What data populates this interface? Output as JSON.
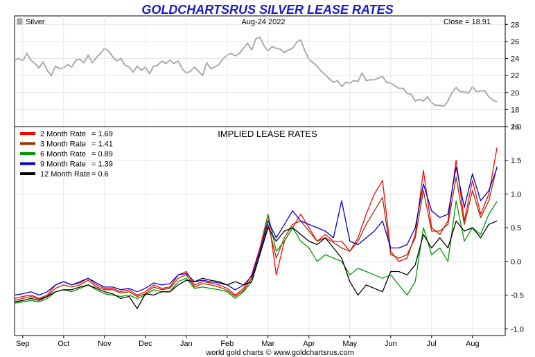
{
  "title": "GOLDCHARTSRUS SILVER LEASE RATES",
  "footer": "world gold charts © www.goldchartsrus.com",
  "colors": {
    "title": "#1a1acc",
    "silver": "#aaaaaa",
    "grid": "#e6e6e6",
    "frame": "#000000"
  },
  "chart_data": [
    {
      "type": "line",
      "panel": "top",
      "legend_label": "Silver",
      "date_label": "Aug-24  2022",
      "close_label": "Close = 18.91",
      "ylim": [
        16,
        29
      ],
      "y_ticks": [
        16,
        18,
        20,
        22,
        24,
        26,
        28
      ],
      "x_range": [
        0,
        12
      ],
      "grid": true,
      "series": [
        {
          "name": "Silver",
          "color": "#aaaaaa",
          "x": [
            0,
            0.1,
            0.2,
            0.3,
            0.4,
            0.5,
            0.6,
            0.7,
            0.8,
            0.9,
            1.0,
            1.1,
            1.2,
            1.3,
            1.4,
            1.5,
            1.6,
            1.7,
            1.8,
            1.9,
            2.0,
            2.1,
            2.2,
            2.3,
            2.4,
            2.5,
            2.6,
            2.7,
            2.8,
            2.9,
            3.0,
            3.1,
            3.2,
            3.3,
            3.4,
            3.5,
            3.6,
            3.7,
            3.8,
            3.9,
            4.0,
            4.1,
            4.2,
            4.3,
            4.4,
            4.5,
            4.6,
            4.7,
            4.8,
            4.9,
            5.0,
            5.1,
            5.2,
            5.3,
            5.4,
            5.5,
            5.6,
            5.7,
            5.8,
            5.9,
            6.0,
            6.1,
            6.2,
            6.3,
            6.4,
            6.5,
            6.6,
            6.7,
            6.8,
            6.9,
            7.0,
            7.1,
            7.2,
            7.3,
            7.4,
            7.5,
            7.6,
            7.7,
            7.8,
            7.9,
            8.0,
            8.1,
            8.2,
            8.3,
            8.4,
            8.5,
            8.6,
            8.7,
            8.8,
            8.9,
            9.0,
            9.1,
            9.2,
            9.3,
            9.4,
            9.5,
            9.6,
            9.7,
            9.8,
            9.9,
            10.0,
            10.1,
            10.2,
            10.3,
            10.4,
            10.5,
            10.6,
            10.7,
            10.8,
            10.9,
            11.0,
            11.1,
            11.2,
            11.3,
            11.4,
            11.5,
            11.6,
            11.7,
            11.8
          ],
          "values": [
            23.8,
            24.0,
            23.7,
            24.6,
            23.8,
            23.4,
            22.9,
            23.6,
            22.6,
            22.0,
            23.1,
            22.8,
            22.9,
            23.3,
            23.0,
            23.8,
            23.9,
            23.5,
            24.4,
            23.5,
            24.1,
            24.6,
            25.2,
            24.9,
            24.2,
            23.7,
            24.0,
            23.2,
            23.0,
            22.4,
            23.1,
            22.6,
            23.0,
            22.2,
            23.1,
            23.2,
            23.7,
            23.4,
            23.8,
            23.4,
            23.7,
            22.8,
            22.3,
            22.5,
            23.0,
            22.5,
            22.0,
            23.5,
            22.8,
            23.0,
            23.3,
            24.0,
            24.4,
            24.6,
            24.3,
            24.6,
            25.2,
            25.8,
            25.0,
            26.3,
            26.5,
            25.5,
            24.9,
            25.4,
            25.2,
            25.1,
            24.7,
            25.0,
            25.2,
            25.9,
            26.2,
            24.9,
            23.9,
            23.5,
            23.1,
            22.5,
            22.1,
            21.6,
            21.2,
            21.4,
            20.7,
            21.2,
            21.1,
            21.4,
            21.3,
            22.3,
            21.4,
            21.5,
            21.5,
            21.7,
            21.9,
            21.2,
            21.1,
            20.8,
            20.5,
            20.5,
            19.9,
            19.8,
            19.0,
            19.2,
            19.0,
            19.5,
            18.8,
            18.5,
            18.5,
            18.4,
            19.0,
            20.0,
            20.6,
            20.1,
            20.1,
            19.9,
            20.7,
            20.1,
            20.2,
            20.2,
            19.5,
            19.1,
            18.9
          ],
          "line_width": 2
        }
      ]
    },
    {
      "type": "line",
      "panel": "bottom",
      "title": "IMPLIED LEASE RATES",
      "ylim": [
        -1.1,
        2.0
      ],
      "y_ticks": [
        -1.0,
        -0.5,
        0.0,
        0.5,
        1.0,
        1.5,
        2.0
      ],
      "y_tick_labels": [
        "-1.0",
        "-0.5",
        "0.0",
        "0.5",
        "1.0",
        "1.5",
        "2.0"
      ],
      "x_range": [
        0,
        12
      ],
      "x_ticks": [
        0.2,
        1.2,
        2.2,
        3.2,
        4.2,
        5.2,
        6.2,
        7.2,
        8.2,
        9.2,
        10.2,
        11.2
      ],
      "categories": [
        "Sep",
        "Oct",
        "Nov",
        "Dec",
        "Jan",
        "Feb",
        "Mar",
        "Apr",
        "May",
        "Jun",
        "Jul",
        "Aug"
      ],
      "grid": true,
      "legend_position": "top-left",
      "series": [
        {
          "name": "2 Month Rate",
          "legend_value": "1.69",
          "color": "#ff0000",
          "x": [
            0,
            0.2,
            0.4,
            0.6,
            0.8,
            1.0,
            1.2,
            1.4,
            1.6,
            1.8,
            2.0,
            2.2,
            2.4,
            2.6,
            2.8,
            3.0,
            3.2,
            3.4,
            3.6,
            3.8,
            4.0,
            4.2,
            4.4,
            4.6,
            4.8,
            5.0,
            5.2,
            5.4,
            5.6,
            5.8,
            6.0,
            6.2,
            6.4,
            6.6,
            6.8,
            7.0,
            7.2,
            7.4,
            7.6,
            7.8,
            8.0,
            8.2,
            8.4,
            8.6,
            8.8,
            9.0,
            9.2,
            9.4,
            9.6,
            9.8,
            10.0,
            10.2,
            10.4,
            10.6,
            10.8,
            11.0,
            11.2,
            11.4,
            11.6,
            11.8
          ],
          "values": [
            -0.55,
            -0.52,
            -0.5,
            -0.55,
            -0.5,
            -0.35,
            -0.3,
            -0.35,
            -0.32,
            -0.25,
            -0.35,
            -0.4,
            -0.4,
            -0.45,
            -0.42,
            -0.5,
            -0.45,
            -0.35,
            -0.4,
            -0.38,
            -0.2,
            -0.15,
            -0.35,
            -0.3,
            -0.32,
            -0.35,
            -0.4,
            -0.5,
            -0.4,
            -0.2,
            0.2,
            0.7,
            -0.2,
            0.3,
            0.5,
            0.7,
            0.5,
            0.3,
            0.4,
            0.3,
            0.3,
            0.15,
            0.35,
            0.7,
            1.0,
            1.2,
            0.15,
            0.0,
            0.05,
            0.4,
            1.35,
            0.5,
            0.4,
            0.6,
            1.5,
            0.6,
            1.2,
            0.7,
            1.0,
            1.69
          ]
        },
        {
          "name": "3 Month Rate",
          "legend_value": "1.41",
          "color": "#993300",
          "x": [
            0,
            0.2,
            0.4,
            0.6,
            0.8,
            1.0,
            1.2,
            1.4,
            1.6,
            1.8,
            2.0,
            2.2,
            2.4,
            2.6,
            2.8,
            3.0,
            3.2,
            3.4,
            3.6,
            3.8,
            4.0,
            4.2,
            4.4,
            4.6,
            4.8,
            5.0,
            5.2,
            5.4,
            5.6,
            5.8,
            6.0,
            6.2,
            6.4,
            6.6,
            6.8,
            7.0,
            7.2,
            7.4,
            7.6,
            7.8,
            8.0,
            8.2,
            8.4,
            8.6,
            8.8,
            9.0,
            9.2,
            9.4,
            9.6,
            9.8,
            10.0,
            10.2,
            10.4,
            10.6,
            10.8,
            11.0,
            11.2,
            11.4,
            11.6,
            11.8
          ],
          "values": [
            -0.58,
            -0.55,
            -0.52,
            -0.56,
            -0.52,
            -0.4,
            -0.35,
            -0.38,
            -0.35,
            -0.28,
            -0.38,
            -0.42,
            -0.42,
            -0.47,
            -0.45,
            -0.52,
            -0.48,
            -0.38,
            -0.42,
            -0.4,
            -0.25,
            -0.2,
            -0.38,
            -0.33,
            -0.35,
            -0.38,
            -0.43,
            -0.52,
            -0.43,
            -0.25,
            0.1,
            0.55,
            0.05,
            0.35,
            0.55,
            0.6,
            0.45,
            0.3,
            0.35,
            0.28,
            0.2,
            0.15,
            0.3,
            0.55,
            0.75,
            0.95,
            0.1,
            0.05,
            0.1,
            0.35,
            1.05,
            0.45,
            0.45,
            0.55,
            1.25,
            0.55,
            1.05,
            0.65,
            0.9,
            1.41
          ]
        },
        {
          "name": "6 Month Rate",
          "legend_value": "0.89",
          "color": "#009900",
          "x": [
            0,
            0.2,
            0.4,
            0.6,
            0.8,
            1.0,
            1.2,
            1.4,
            1.6,
            1.8,
            2.0,
            2.2,
            2.4,
            2.6,
            2.8,
            3.0,
            3.2,
            3.4,
            3.6,
            3.8,
            4.0,
            4.2,
            4.4,
            4.6,
            4.8,
            5.0,
            5.2,
            5.4,
            5.6,
            5.8,
            6.0,
            6.2,
            6.4,
            6.6,
            6.8,
            7.0,
            7.2,
            7.4,
            7.6,
            7.8,
            8.0,
            8.2,
            8.4,
            8.6,
            8.8,
            9.0,
            9.2,
            9.4,
            9.6,
            9.8,
            10.0,
            10.2,
            10.4,
            10.6,
            10.8,
            11.0,
            11.2,
            11.4,
            11.6,
            11.8
          ],
          "values": [
            -0.62,
            -0.6,
            -0.58,
            -0.6,
            -0.55,
            -0.45,
            -0.42,
            -0.45,
            -0.4,
            -0.35,
            -0.42,
            -0.48,
            -0.5,
            -0.52,
            -0.5,
            -0.55,
            -0.5,
            -0.42,
            -0.45,
            -0.45,
            -0.3,
            -0.25,
            -0.4,
            -0.38,
            -0.4,
            -0.42,
            -0.45,
            -0.55,
            -0.45,
            -0.3,
            0.1,
            0.7,
            0.15,
            0.3,
            0.5,
            0.3,
            0.2,
            0.0,
            0.1,
            0.05,
            0.0,
            -0.2,
            -0.1,
            -0.15,
            -0.2,
            -0.25,
            -0.2,
            -0.35,
            -0.5,
            -0.3,
            0.5,
            0.1,
            0.2,
            0.0,
            0.9,
            0.3,
            0.5,
            0.4,
            0.7,
            0.89
          ]
        },
        {
          "name": "9 Month Rate",
          "legend_value": "1.39",
          "color": "#0000cc",
          "x": [
            0,
            0.2,
            0.4,
            0.6,
            0.8,
            1.0,
            1.2,
            1.4,
            1.6,
            1.8,
            2.0,
            2.2,
            2.4,
            2.6,
            2.8,
            3.0,
            3.2,
            3.4,
            3.6,
            3.8,
            4.0,
            4.2,
            4.4,
            4.6,
            4.8,
            5.0,
            5.2,
            5.4,
            5.6,
            5.8,
            6.0,
            6.2,
            6.4,
            6.6,
            6.8,
            7.0,
            7.2,
            7.4,
            7.6,
            7.8,
            8.0,
            8.2,
            8.4,
            8.6,
            8.8,
            9.0,
            9.2,
            9.4,
            9.6,
            9.8,
            10.0,
            10.2,
            10.4,
            10.6,
            10.8,
            11.0,
            11.2,
            11.4,
            11.6,
            11.8
          ],
          "values": [
            -0.5,
            -0.48,
            -0.45,
            -0.5,
            -0.45,
            -0.35,
            -0.3,
            -0.35,
            -0.3,
            -0.25,
            -0.32,
            -0.38,
            -0.38,
            -0.42,
            -0.4,
            -0.45,
            -0.4,
            -0.32,
            -0.35,
            -0.33,
            -0.2,
            -0.18,
            -0.3,
            -0.28,
            -0.3,
            -0.32,
            -0.35,
            -0.42,
            -0.35,
            -0.22,
            0.15,
            0.6,
            0.35,
            0.55,
            0.75,
            0.6,
            0.55,
            0.5,
            0.45,
            0.35,
            0.9,
            0.3,
            0.25,
            0.35,
            0.45,
            0.6,
            0.2,
            0.2,
            0.25,
            0.5,
            1.15,
            0.75,
            0.65,
            0.7,
            1.4,
            0.8,
            1.3,
            0.9,
            1.05,
            1.39
          ]
        },
        {
          "name": "12 Month Rate",
          "legend_value": "0.6",
          "color": "#000000",
          "x": [
            0,
            0.2,
            0.4,
            0.6,
            0.8,
            1.0,
            1.2,
            1.4,
            1.6,
            1.8,
            2.0,
            2.2,
            2.4,
            2.6,
            2.8,
            3.0,
            3.2,
            3.4,
            3.6,
            3.8,
            4.0,
            4.2,
            4.4,
            4.6,
            4.8,
            5.0,
            5.2,
            5.4,
            5.6,
            5.8,
            6.0,
            6.2,
            6.4,
            6.6,
            6.8,
            7.0,
            7.2,
            7.4,
            7.6,
            7.8,
            8.0,
            8.2,
            8.4,
            8.6,
            8.8,
            9.0,
            9.2,
            9.4,
            9.6,
            9.8,
            10.0,
            10.2,
            10.4,
            10.6,
            10.8,
            11.0,
            11.2,
            11.4,
            11.6,
            11.8
          ],
          "values": [
            -0.6,
            -0.58,
            -0.55,
            -0.58,
            -0.52,
            -0.45,
            -0.42,
            -0.42,
            -0.38,
            -0.35,
            -0.4,
            -0.45,
            -0.48,
            -0.55,
            -0.52,
            -0.7,
            -0.48,
            -0.5,
            -0.45,
            -0.45,
            -0.35,
            -0.28,
            -0.3,
            -0.25,
            -0.28,
            -0.3,
            -0.35,
            -0.3,
            -0.35,
            -0.3,
            0.1,
            0.5,
            0.3,
            0.45,
            0.5,
            0.4,
            0.3,
            0.25,
            0.35,
            0.2,
            0.05,
            -0.3,
            -0.5,
            -0.35,
            -0.4,
            -0.45,
            -0.15,
            -0.15,
            -0.2,
            -0.05,
            0.4,
            0.2,
            0.35,
            0.2,
            0.6,
            0.45,
            0.5,
            0.35,
            0.55,
            0.6
          ]
        }
      ]
    }
  ]
}
